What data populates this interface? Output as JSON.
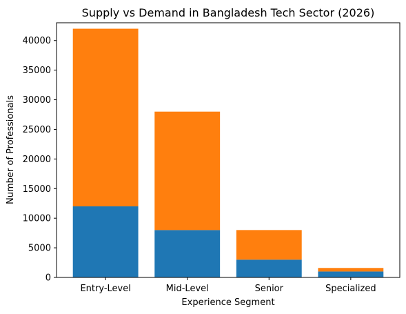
{
  "chart_data": {
    "type": "bar",
    "stacked": true,
    "title": "Supply vs Demand in Bangladesh Tech Sector (2026)",
    "xlabel": "Experience Segment",
    "ylabel": "Number of Professionals",
    "categories": [
      "Entry-Level",
      "Mid-Level",
      "Senior",
      "Specialized"
    ],
    "series": [
      {
        "color": "#1f77b4",
        "values": [
          12000,
          8000,
          3000,
          1000
        ]
      },
      {
        "color": "#ff7f0e",
        "values": [
          30000,
          20000,
          5000,
          600
        ]
      }
    ],
    "ylim": [
      0,
      43000
    ],
    "yticks": [
      0,
      5000,
      10000,
      15000,
      20000,
      25000,
      30000,
      35000,
      40000
    ],
    "grid": false,
    "legend": "none"
  }
}
